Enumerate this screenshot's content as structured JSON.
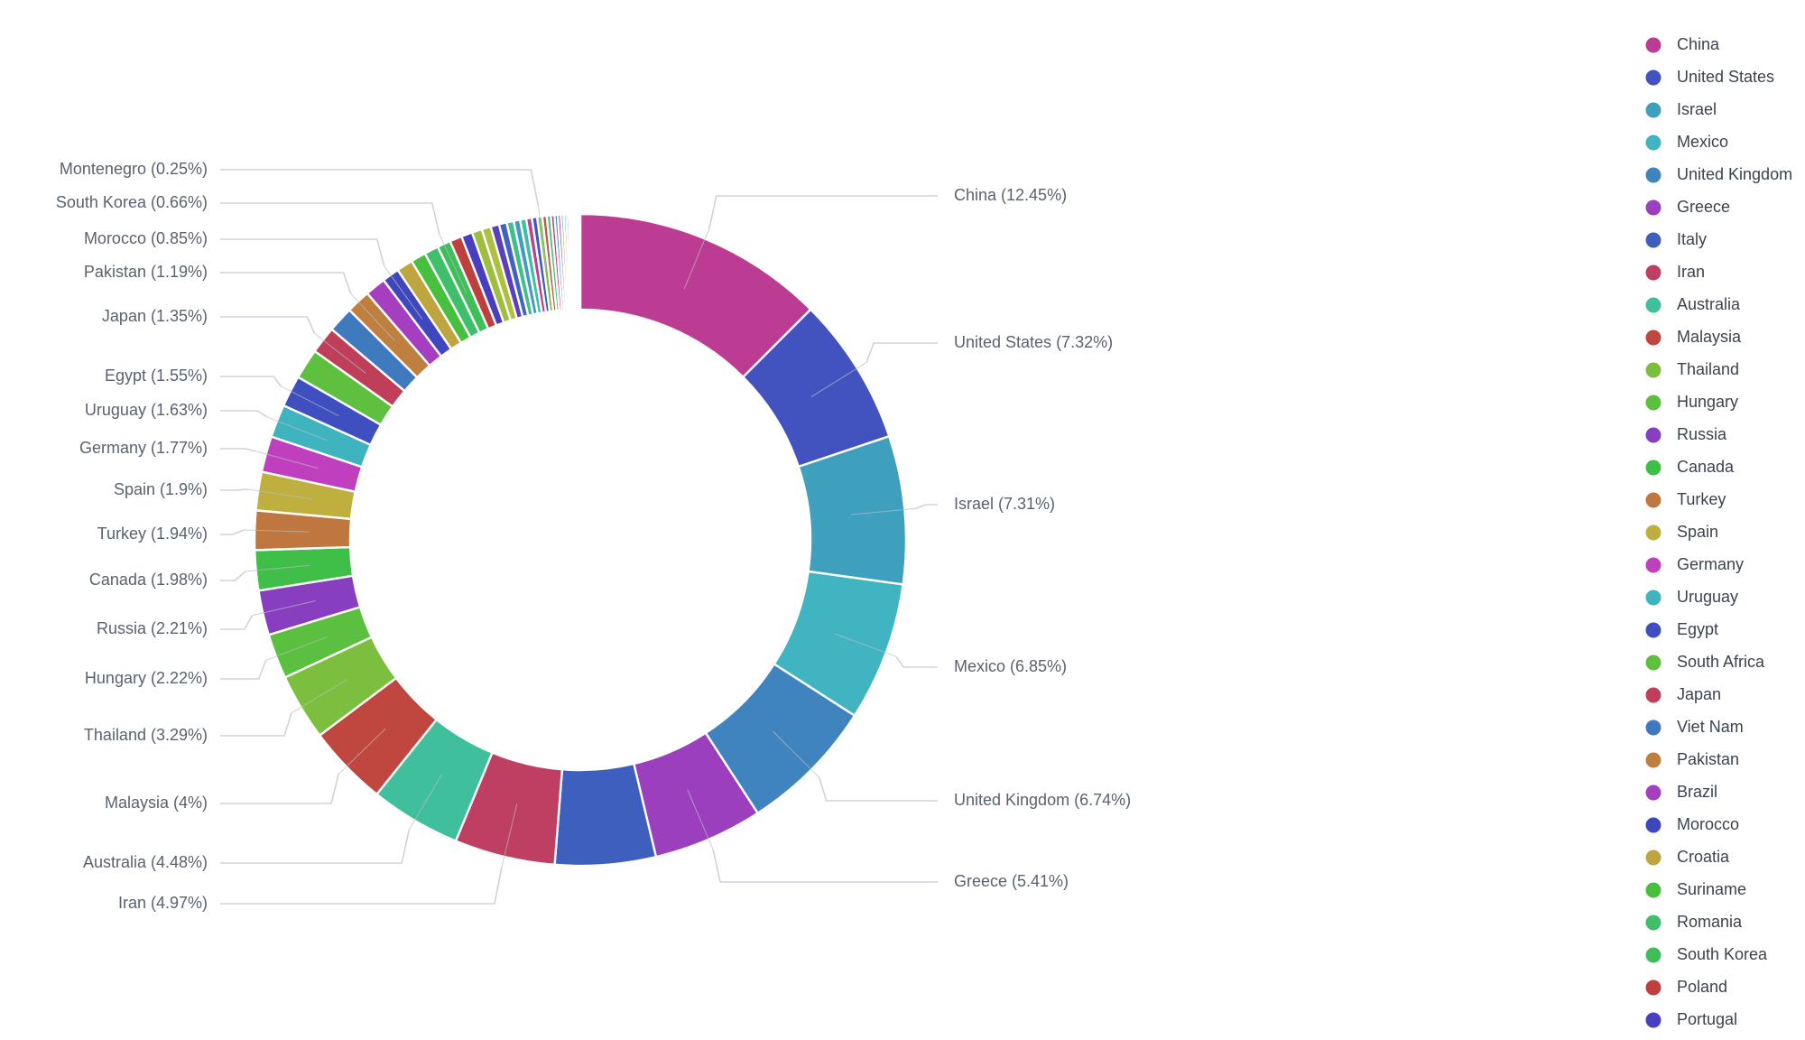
{
  "chart_data": {
    "type": "pie",
    "donut": true,
    "slices": [
      {
        "name": "China",
        "value": 12.45,
        "label": "China (12.45%)",
        "color": "#bd3c93"
      },
      {
        "name": "United States",
        "value": 7.32,
        "label": "United States (7.32%)",
        "color": "#4253bf"
      },
      {
        "name": "Israel",
        "value": 7.31,
        "label": "Israel (7.31%)",
        "color": "#3fa0be"
      },
      {
        "name": "Mexico",
        "value": 6.85,
        "label": "Mexico (6.85%)",
        "color": "#41b4c1"
      },
      {
        "name": "United Kingdom",
        "value": 6.74,
        "label": "United Kingdom (6.74%)",
        "color": "#3f84bf"
      },
      {
        "name": "Greece",
        "value": 5.41,
        "label": "Greece (5.41%)",
        "color": "#9c3fbf"
      },
      {
        "name": "Italy",
        "value": 4.97,
        "label": "Italy",
        "color": "#3f5fbf"
      },
      {
        "name": "Iran",
        "value": 4.97,
        "label": "Iran (4.97%)",
        "color": "#bf3f63"
      },
      {
        "name": "Australia",
        "value": 4.48,
        "label": "Australia (4.48%)",
        "color": "#3fbf9c"
      },
      {
        "name": "Malaysia",
        "value": 4.0,
        "label": "Malaysia (4%)",
        "color": "#bf473f"
      },
      {
        "name": "Thailand",
        "value": 3.29,
        "label": "Thailand (3.29%)",
        "color": "#7cbf3f"
      },
      {
        "name": "Hungary",
        "value": 2.22,
        "label": "Hungary (2.22%)",
        "color": "#5bbf3f"
      },
      {
        "name": "Russia",
        "value": 2.21,
        "label": "Russia (2.21%)",
        "color": "#883fbf"
      },
      {
        "name": "Canada",
        "value": 1.98,
        "label": "Canada (1.98%)",
        "color": "#3fbf47"
      },
      {
        "name": "Turkey",
        "value": 1.94,
        "label": "Turkey (1.94%)",
        "color": "#bf773f"
      },
      {
        "name": "Spain",
        "value": 1.9,
        "label": "Spain (1.9%)",
        "color": "#bfaf3f"
      },
      {
        "name": "Germany",
        "value": 1.77,
        "label": "Germany (1.77%)",
        "color": "#bf3fbf"
      },
      {
        "name": "Uruguay",
        "value": 1.63,
        "label": "Uruguay (1.63%)",
        "color": "#3fb4bf"
      },
      {
        "name": "Egypt",
        "value": 1.55,
        "label": "Egypt (1.55%)",
        "color": "#3f4fbf"
      },
      {
        "name": "South Africa",
        "value": 1.5,
        "label": "South Africa",
        "color": "#5fbf3f"
      },
      {
        "name": "Japan",
        "value": 1.35,
        "label": "Japan (1.35%)",
        "color": "#bf3f5a"
      },
      {
        "name": "Viet Nam",
        "value": 1.27,
        "label": "Viet Nam",
        "color": "#3f7abf"
      },
      {
        "name": "Pakistan",
        "value": 1.19,
        "label": "Pakistan (1.19%)",
        "color": "#bf7f3f"
      },
      {
        "name": "Brazil",
        "value": 1.02,
        "label": "Brazil",
        "color": "#a63fbf"
      },
      {
        "name": "Morocco",
        "value": 0.85,
        "label": "Morocco (0.85%)",
        "color": "#3f47bf"
      },
      {
        "name": "Croatia",
        "value": 0.8,
        "label": "Croatia",
        "color": "#bfa53f"
      },
      {
        "name": "Suriname",
        "value": 0.75,
        "label": "Suriname",
        "color": "#47bf3f"
      },
      {
        "name": "Romania",
        "value": 0.7,
        "label": "Romania",
        "color": "#3fbf6a"
      },
      {
        "name": "South Korea",
        "value": 0.66,
        "label": "South Korea (0.66%)",
        "color": "#3fbf5a"
      },
      {
        "name": "Poland",
        "value": 0.6,
        "label": "Poland",
        "color": "#bf3f3f"
      },
      {
        "name": "Portugal",
        "value": 0.55,
        "label": "Portugal",
        "color": "#473fbf"
      },
      {
        "name": "",
        "value": 0.5,
        "label": "",
        "color": "#9cbf3f"
      },
      {
        "name": "",
        "value": 0.45,
        "label": "",
        "color": "#afbf3f"
      },
      {
        "name": "",
        "value": 0.42,
        "label": "",
        "color": "#5a3fbf"
      },
      {
        "name": "",
        "value": 0.38,
        "label": "",
        "color": "#3f63bf"
      },
      {
        "name": "",
        "value": 0.35,
        "label": "",
        "color": "#3fbf8c"
      },
      {
        "name": "",
        "value": 0.32,
        "label": "",
        "color": "#3f9cbf"
      },
      {
        "name": "",
        "value": 0.3,
        "label": "",
        "color": "#3fbfa5"
      },
      {
        "name": "",
        "value": 0.28,
        "label": "",
        "color": "#bf3f88"
      },
      {
        "name": "",
        "value": 0.26,
        "label": "",
        "color": "#3f58bf"
      },
      {
        "name": "Montenegro",
        "value": 0.25,
        "label": "Montenegro (0.25%)",
        "color": "#6fbf3f"
      },
      {
        "name": "",
        "value": 0.22,
        "label": "",
        "color": "#bf5a3f"
      },
      {
        "name": "",
        "value": 0.2,
        "label": "",
        "color": "#3fbf7c"
      },
      {
        "name": "",
        "value": 0.18,
        "label": "",
        "color": "#bf3f6f"
      },
      {
        "name": "",
        "value": 0.16,
        "label": "",
        "color": "#3f88bf"
      },
      {
        "name": "",
        "value": 0.15,
        "label": "",
        "color": "#883fbf"
      },
      {
        "name": "",
        "value": 0.14,
        "label": "",
        "color": "#bf9c3f"
      },
      {
        "name": "",
        "value": 0.13,
        "label": "",
        "color": "#3fbfbf"
      },
      {
        "name": "",
        "value": 0.12,
        "label": "",
        "color": "#bf3fa5"
      },
      {
        "name": "",
        "value": 0.11,
        "label": "",
        "color": "#63bf3f"
      },
      {
        "name": "",
        "value": 0.1,
        "label": "",
        "color": "#3f6fbf"
      },
      {
        "name": "",
        "value": 0.1,
        "label": "",
        "color": "#bf3f9c"
      },
      {
        "name": "",
        "value": 0.09,
        "label": "",
        "color": "#3fbf9c"
      },
      {
        "name": "",
        "value": 0.08,
        "label": "",
        "color": "#bf633f"
      },
      {
        "name": "",
        "value": 0.08,
        "label": "",
        "color": "#a53fbf"
      }
    ],
    "legend": {
      "position": "right",
      "items": [
        {
          "name": "China",
          "color": "#bd3c93"
        },
        {
          "name": "United States",
          "color": "#4253bf"
        },
        {
          "name": "Israel",
          "color": "#3fa0be"
        },
        {
          "name": "Mexico",
          "color": "#41b4c1"
        },
        {
          "name": "United Kingdom",
          "color": "#3f84bf"
        },
        {
          "name": "Greece",
          "color": "#9c3fbf"
        },
        {
          "name": "Italy",
          "color": "#3f5fbf"
        },
        {
          "name": "Iran",
          "color": "#bf3f63"
        },
        {
          "name": "Australia",
          "color": "#3fbf9c"
        },
        {
          "name": "Malaysia",
          "color": "#bf473f"
        },
        {
          "name": "Thailand",
          "color": "#7cbf3f"
        },
        {
          "name": "Hungary",
          "color": "#5bbf3f"
        },
        {
          "name": "Russia",
          "color": "#883fbf"
        },
        {
          "name": "Canada",
          "color": "#3fbf47"
        },
        {
          "name": "Turkey",
          "color": "#bf773f"
        },
        {
          "name": "Spain",
          "color": "#bfaf3f"
        },
        {
          "name": "Germany",
          "color": "#bf3fbf"
        },
        {
          "name": "Uruguay",
          "color": "#3fb4bf"
        },
        {
          "name": "Egypt",
          "color": "#3f4fbf"
        },
        {
          "name": "South Africa",
          "color": "#5fbf3f"
        },
        {
          "name": "Japan",
          "color": "#bf3f5a"
        },
        {
          "name": "Viet Nam",
          "color": "#3f7abf"
        },
        {
          "name": "Pakistan",
          "color": "#bf7f3f"
        },
        {
          "name": "Brazil",
          "color": "#a63fbf"
        },
        {
          "name": "Morocco",
          "color": "#3f47bf"
        },
        {
          "name": "Croatia",
          "color": "#bfa53f"
        },
        {
          "name": "Suriname",
          "color": "#47bf3f"
        },
        {
          "name": "Romania",
          "color": "#3fbf6a"
        },
        {
          "name": "South Korea",
          "color": "#3fbf5a"
        },
        {
          "name": "Poland",
          "color": "#bf3f3f"
        },
        {
          "name": "Portugal",
          "color": "#473fbf"
        }
      ]
    }
  }
}
